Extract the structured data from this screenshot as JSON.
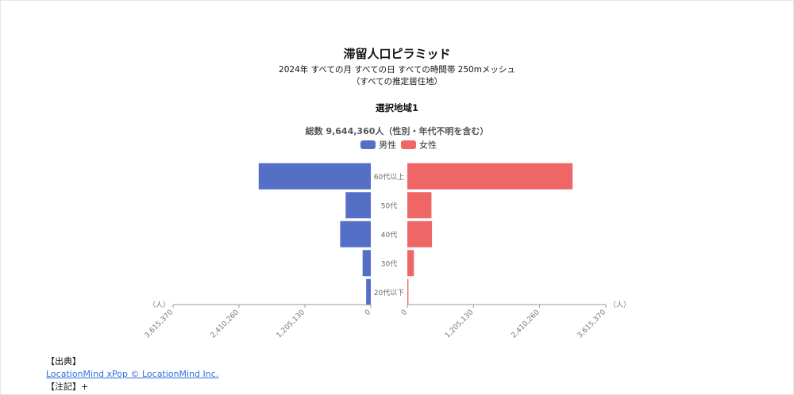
{
  "header": {
    "title": "滞留人口ピラミッド",
    "subtitle": "2024年 すべての月 すべての日 すべての時間帯 250mメッシュ",
    "subtitle2": "（すべての推定居住地）"
  },
  "region": {
    "label": "選択地域1"
  },
  "chart_data": {
    "type": "bar",
    "orientation": "horizontal-pyramid",
    "title": "総数 9,644,360人（性別・年代不明を含む）",
    "categories": [
      "60代以上",
      "50代",
      "40代",
      "30代",
      "20代以下"
    ],
    "series": [
      {
        "name": "男性",
        "color": "#5470c6",
        "values": [
          2050000,
          460000,
          560000,
          150000,
          85000
        ]
      },
      {
        "name": "女性",
        "color": "#ee6666",
        "values": [
          3010000,
          440000,
          450000,
          120000,
          20000
        ]
      }
    ],
    "xlim": [
      0,
      3615370
    ],
    "ticks": [
      "0",
      "1,205,130",
      "2,410,260",
      "3,615,370"
    ],
    "tick_values": [
      0,
      1205130,
      2410260,
      3615370
    ],
    "axis_unit": "（人）",
    "legend_position": "top-center",
    "grid": false
  },
  "footer": {
    "source_label": "【出典】",
    "source_link": "LocationMind xPop © LocationMind Inc.",
    "note_label": "【注記】",
    "note_toggle": "+"
  }
}
